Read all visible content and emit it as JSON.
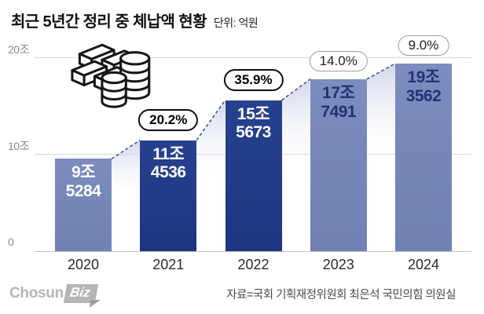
{
  "header": {
    "title": "최근 5년간 정리 중 체납액 현황",
    "unit": "단위: 억원"
  },
  "chart_data": {
    "type": "bar",
    "title": "최근 5년간 정리 중 체납액 현황",
    "unit_label": "단위: 억원",
    "categories": [
      "2020",
      "2021",
      "2022",
      "2023",
      "2024"
    ],
    "values": [
      9.5284,
      11.4536,
      15.5673,
      17.7491,
      19.3562
    ],
    "values_unit": "조원",
    "value_labels": [
      [
        "9조",
        "5284"
      ],
      [
        "11조",
        "4536"
      ],
      [
        "15조",
        "5673"
      ],
      [
        "17조",
        "7491"
      ],
      [
        "19조",
        "3562"
      ]
    ],
    "growth_badges": [
      null,
      "20.2%",
      "35.9%",
      "14.0%",
      "9.0%"
    ],
    "badge_emphasis": [
      false,
      true,
      true,
      false,
      false
    ],
    "bar_styles": [
      "light",
      "dark",
      "dark",
      "light",
      "light"
    ],
    "value_text_colors": [
      "white",
      "white",
      "white",
      "navy",
      "navy"
    ],
    "ylim": [
      0,
      20
    ],
    "yticks": [
      "20조",
      "10조",
      "0"
    ],
    "grid": true,
    "legend": "none",
    "colors": {
      "bar_dark": "#1f3a87",
      "bar_light": "#7687b9",
      "navy_text": "#1e3476",
      "dashed_line": "#3d56a0",
      "gridline": "#d8d8d8"
    }
  },
  "footer": {
    "logo_chosun": "Chosun",
    "logo_biz": "Biz",
    "source": "자료=국회 기획재정위원회 최은석 국민의힘 의원실"
  }
}
